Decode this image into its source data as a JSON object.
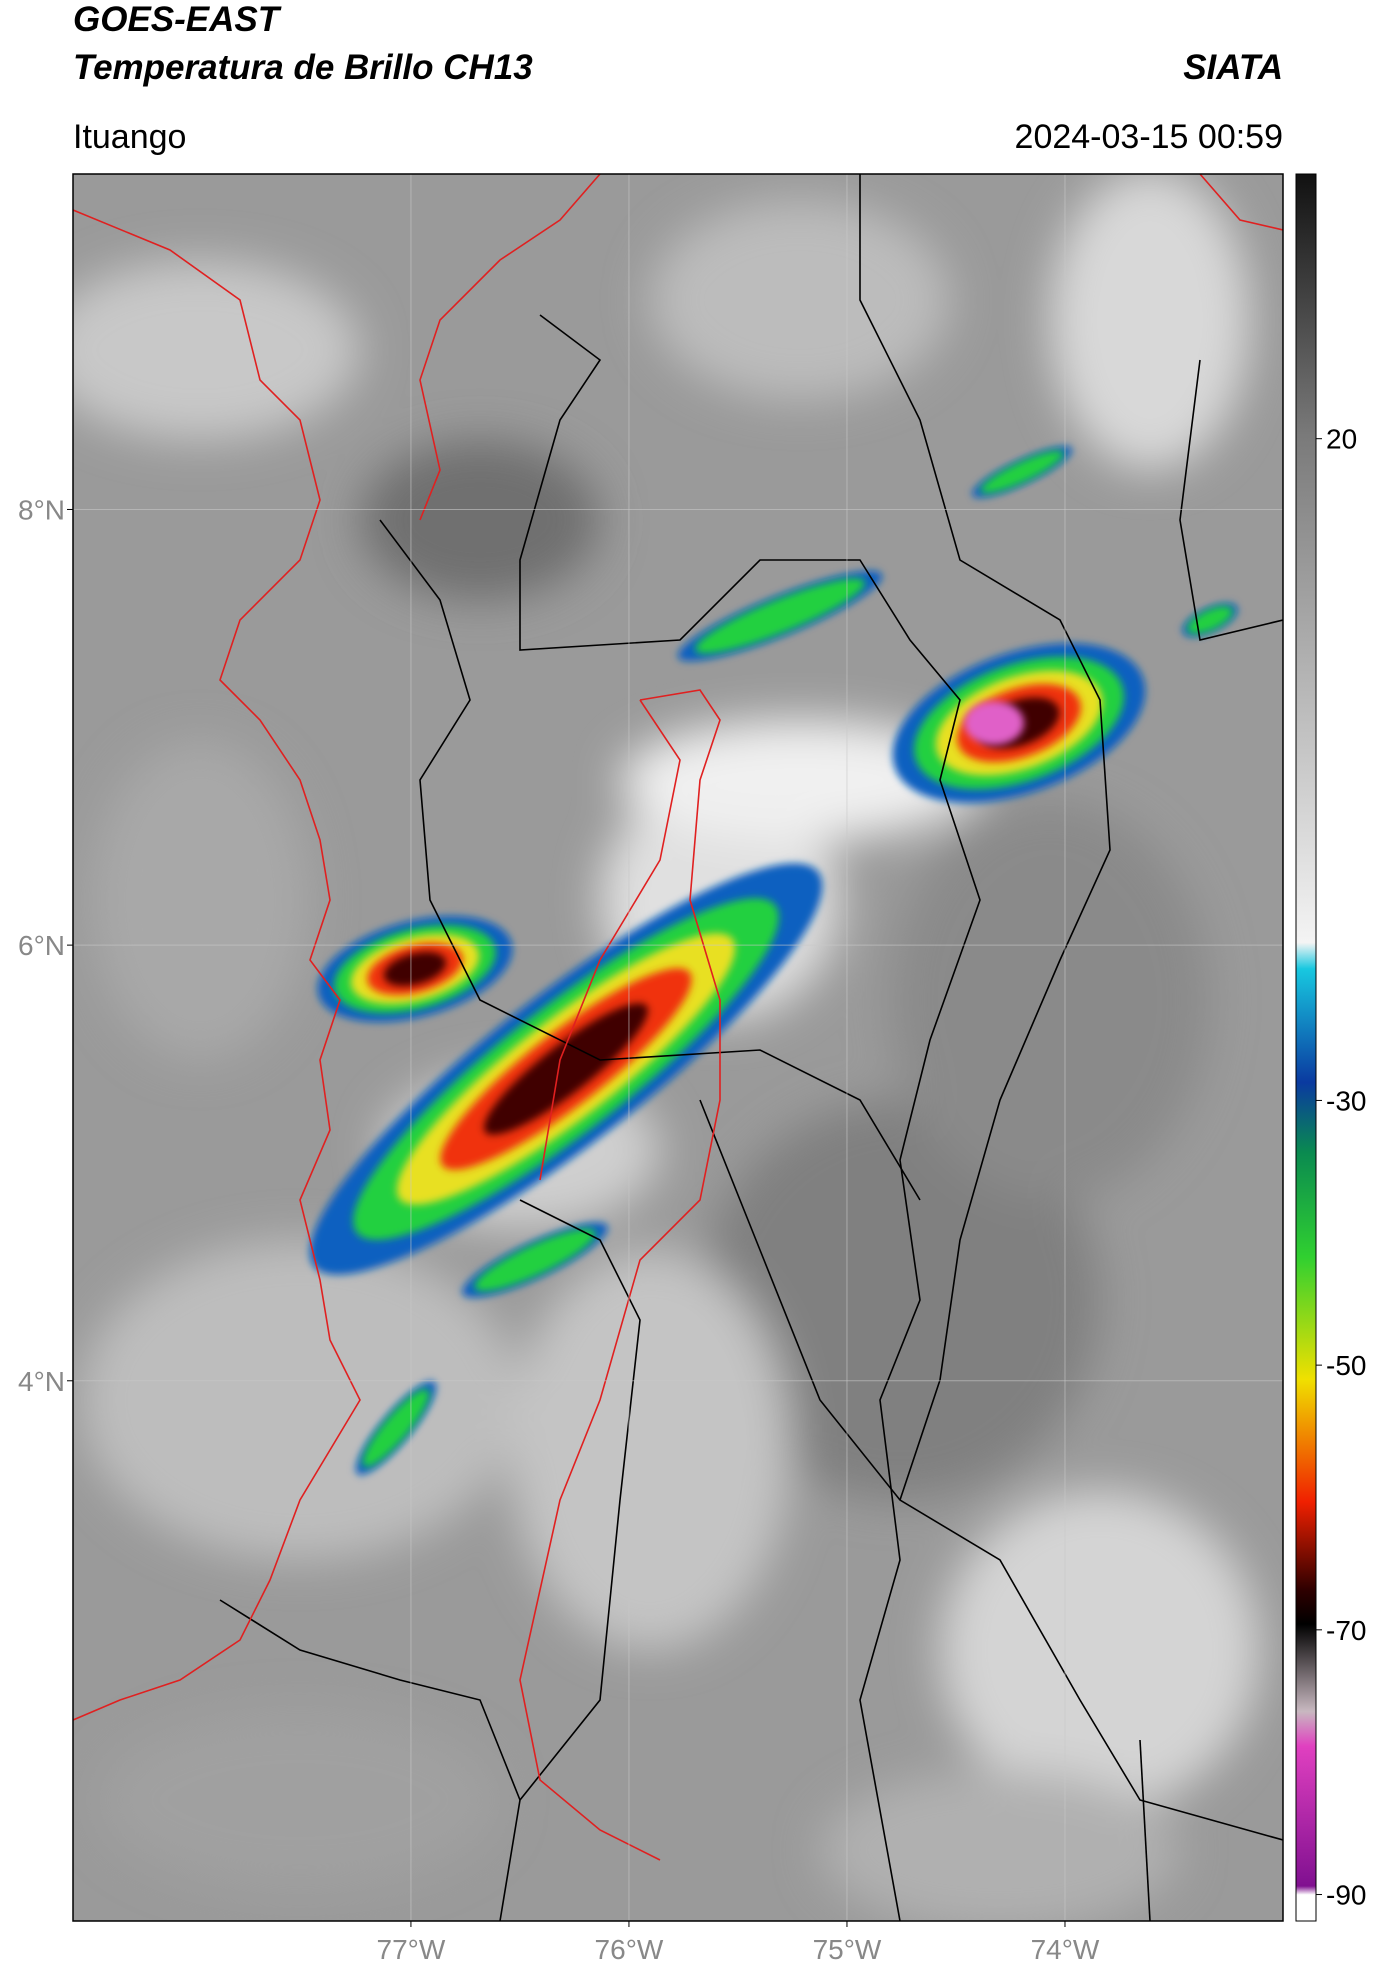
{
  "header": {
    "title": "GOES-EAST",
    "subtitle": "Temperatura de Brillo CH13",
    "agency": "SIATA",
    "location": "Ituango",
    "timestamp": "2024-03-15 00:59"
  },
  "map": {
    "xlim": [
      -78.55,
      -73
    ],
    "ylim": [
      1.52,
      9.54
    ],
    "xticks": [
      {
        "value": -77,
        "label": "77°W"
      },
      {
        "value": -76,
        "label": "76°W"
      },
      {
        "value": -75,
        "label": "75°W"
      },
      {
        "value": -74,
        "label": "74°W"
      }
    ],
    "yticks": [
      {
        "value": 8,
        "label": "8°N"
      },
      {
        "value": 6,
        "label": "6°N"
      },
      {
        "value": 4,
        "label": "4°N"
      }
    ],
    "grid": true
  },
  "colorbar": {
    "lim": [
      -92,
      40
    ],
    "ticks": [
      20,
      -30,
      -50,
      -70,
      -90
    ]
  }
}
